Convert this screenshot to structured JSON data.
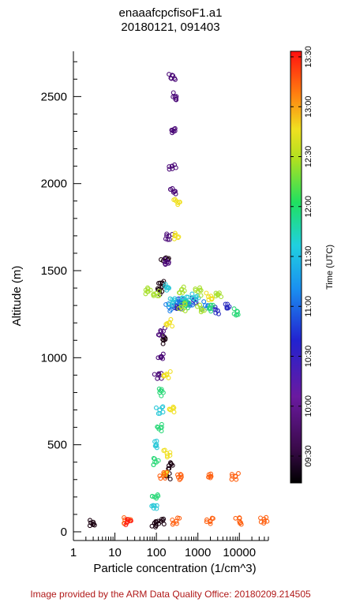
{
  "title_line1": "enaaafcpcfisoF1.a1",
  "title_line2": "20180121, 091403",
  "footer": "Image provided by the ARM Data Quality Office: 20180209.214505",
  "chart_data": {
    "type": "scatter",
    "title": "enaaafcpcfisoF1.a1",
    "subtitle": "20180121, 091403",
    "xlabel": "Particle concentration (1/cm^3)",
    "ylabel": "Altitude (m)",
    "xscale": "log",
    "xlim": [
      1,
      50000
    ],
    "ylim": [
      -50,
      2760
    ],
    "x_ticks": [
      {
        "value": 1,
        "label": "1"
      },
      {
        "value": 10,
        "label": "10"
      },
      {
        "value": 100,
        "label": "100"
      },
      {
        "value": 1000,
        "label": "1000"
      },
      {
        "value": 10000,
        "label": "10000"
      }
    ],
    "y_ticks": [
      {
        "value": 0,
        "label": "0"
      },
      {
        "value": 500,
        "label": "500"
      },
      {
        "value": 1000,
        "label": "1000"
      },
      {
        "value": 1500,
        "label": "1500"
      },
      {
        "value": 2000,
        "label": "2000"
      },
      {
        "value": 2500,
        "label": "2500"
      }
    ],
    "colorbar": {
      "label": "Time (UTC)",
      "ticks": [
        "09:30",
        "10:00",
        "10:30",
        "11:00",
        "11:30",
        "12:00",
        "12:30",
        "13:00",
        "13:30"
      ],
      "colormap": "rainbow (black–purple–blue–cyan–green–yellow–orange–red)"
    },
    "series": [
      {
        "time": "09:20",
        "color": "#1a0010",
        "points": [
          [
            90,
            50
          ],
          [
            130,
            60
          ],
          [
            180,
            320
          ],
          [
            200,
            380
          ],
          [
            150,
            1100
          ],
          [
            120,
            1380
          ],
          [
            140,
            1430
          ],
          [
            160,
            1570
          ],
          [
            3,
            55
          ]
        ]
      },
      {
        "time": "09:40",
        "color": "#4b0a78",
        "points": [
          [
            250,
            2620
          ],
          [
            280,
            2500
          ],
          [
            260,
            2300
          ],
          [
            240,
            2100
          ],
          [
            260,
            1950
          ],
          [
            200,
            1700
          ],
          [
            180,
            1550
          ],
          [
            130,
            1000
          ],
          [
            110,
            900
          ],
          [
            130,
            1150
          ],
          [
            300,
            1300
          ]
        ]
      },
      {
        "time": "10:10",
        "color": "#2d2fc0",
        "points": [
          [
            350,
            1300
          ],
          [
            400,
            1320
          ],
          [
            3000,
            1270
          ],
          [
            5000,
            1290
          ],
          [
            800,
            1330
          ]
        ]
      },
      {
        "time": "10:40",
        "color": "#1c7fe8",
        "points": [
          [
            600,
            1310
          ],
          [
            1500,
            1300
          ],
          [
            300,
            1320
          ],
          [
            200,
            1290
          ]
        ]
      },
      {
        "time": "11:00",
        "color": "#2ac8d8",
        "points": [
          [
            250,
            1320
          ],
          [
            500,
            1330
          ],
          [
            900,
            1350
          ],
          [
            200,
            1400
          ],
          [
            120,
            700
          ],
          [
            100,
            500
          ],
          [
            90,
            150
          ]
        ]
      },
      {
        "time": "11:30",
        "color": "#2ad878",
        "points": [
          [
            110,
            600
          ],
          [
            100,
            400
          ],
          [
            90,
            200
          ],
          [
            120,
            800
          ],
          [
            500,
            1300
          ],
          [
            2000,
            1280
          ],
          [
            9000,
            1265
          ]
        ]
      },
      {
        "time": "12:00",
        "color": "#a8e030",
        "points": [
          [
            60,
            1380
          ],
          [
            100,
            1370
          ],
          [
            400,
            1390
          ],
          [
            1000,
            1380
          ],
          [
            3000,
            1360
          ],
          [
            1200,
            1285
          ],
          [
            400,
            1290
          ]
        ]
      },
      {
        "time": "12:30",
        "color": "#f0e020",
        "points": [
          [
            300,
            1900
          ],
          [
            280,
            1700
          ],
          [
            200,
            1200
          ],
          [
            180,
            900
          ],
          [
            220,
            700
          ],
          [
            180,
            450
          ],
          [
            150,
            330
          ],
          [
            1800,
            1350
          ]
        ]
      },
      {
        "time": "13:00",
        "color": "#ff6010",
        "points": [
          [
            150,
            320
          ],
          [
            400,
            315
          ],
          [
            2000,
            318
          ],
          [
            8000,
            320
          ],
          [
            300,
            60
          ],
          [
            2000,
            62
          ],
          [
            10000,
            60
          ],
          [
            40000,
            60
          ],
          [
            20,
            60
          ]
        ]
      },
      {
        "time": "13:30",
        "color": "#ff1a10",
        "points": [
          [
            20,
            58
          ]
        ]
      }
    ]
  }
}
